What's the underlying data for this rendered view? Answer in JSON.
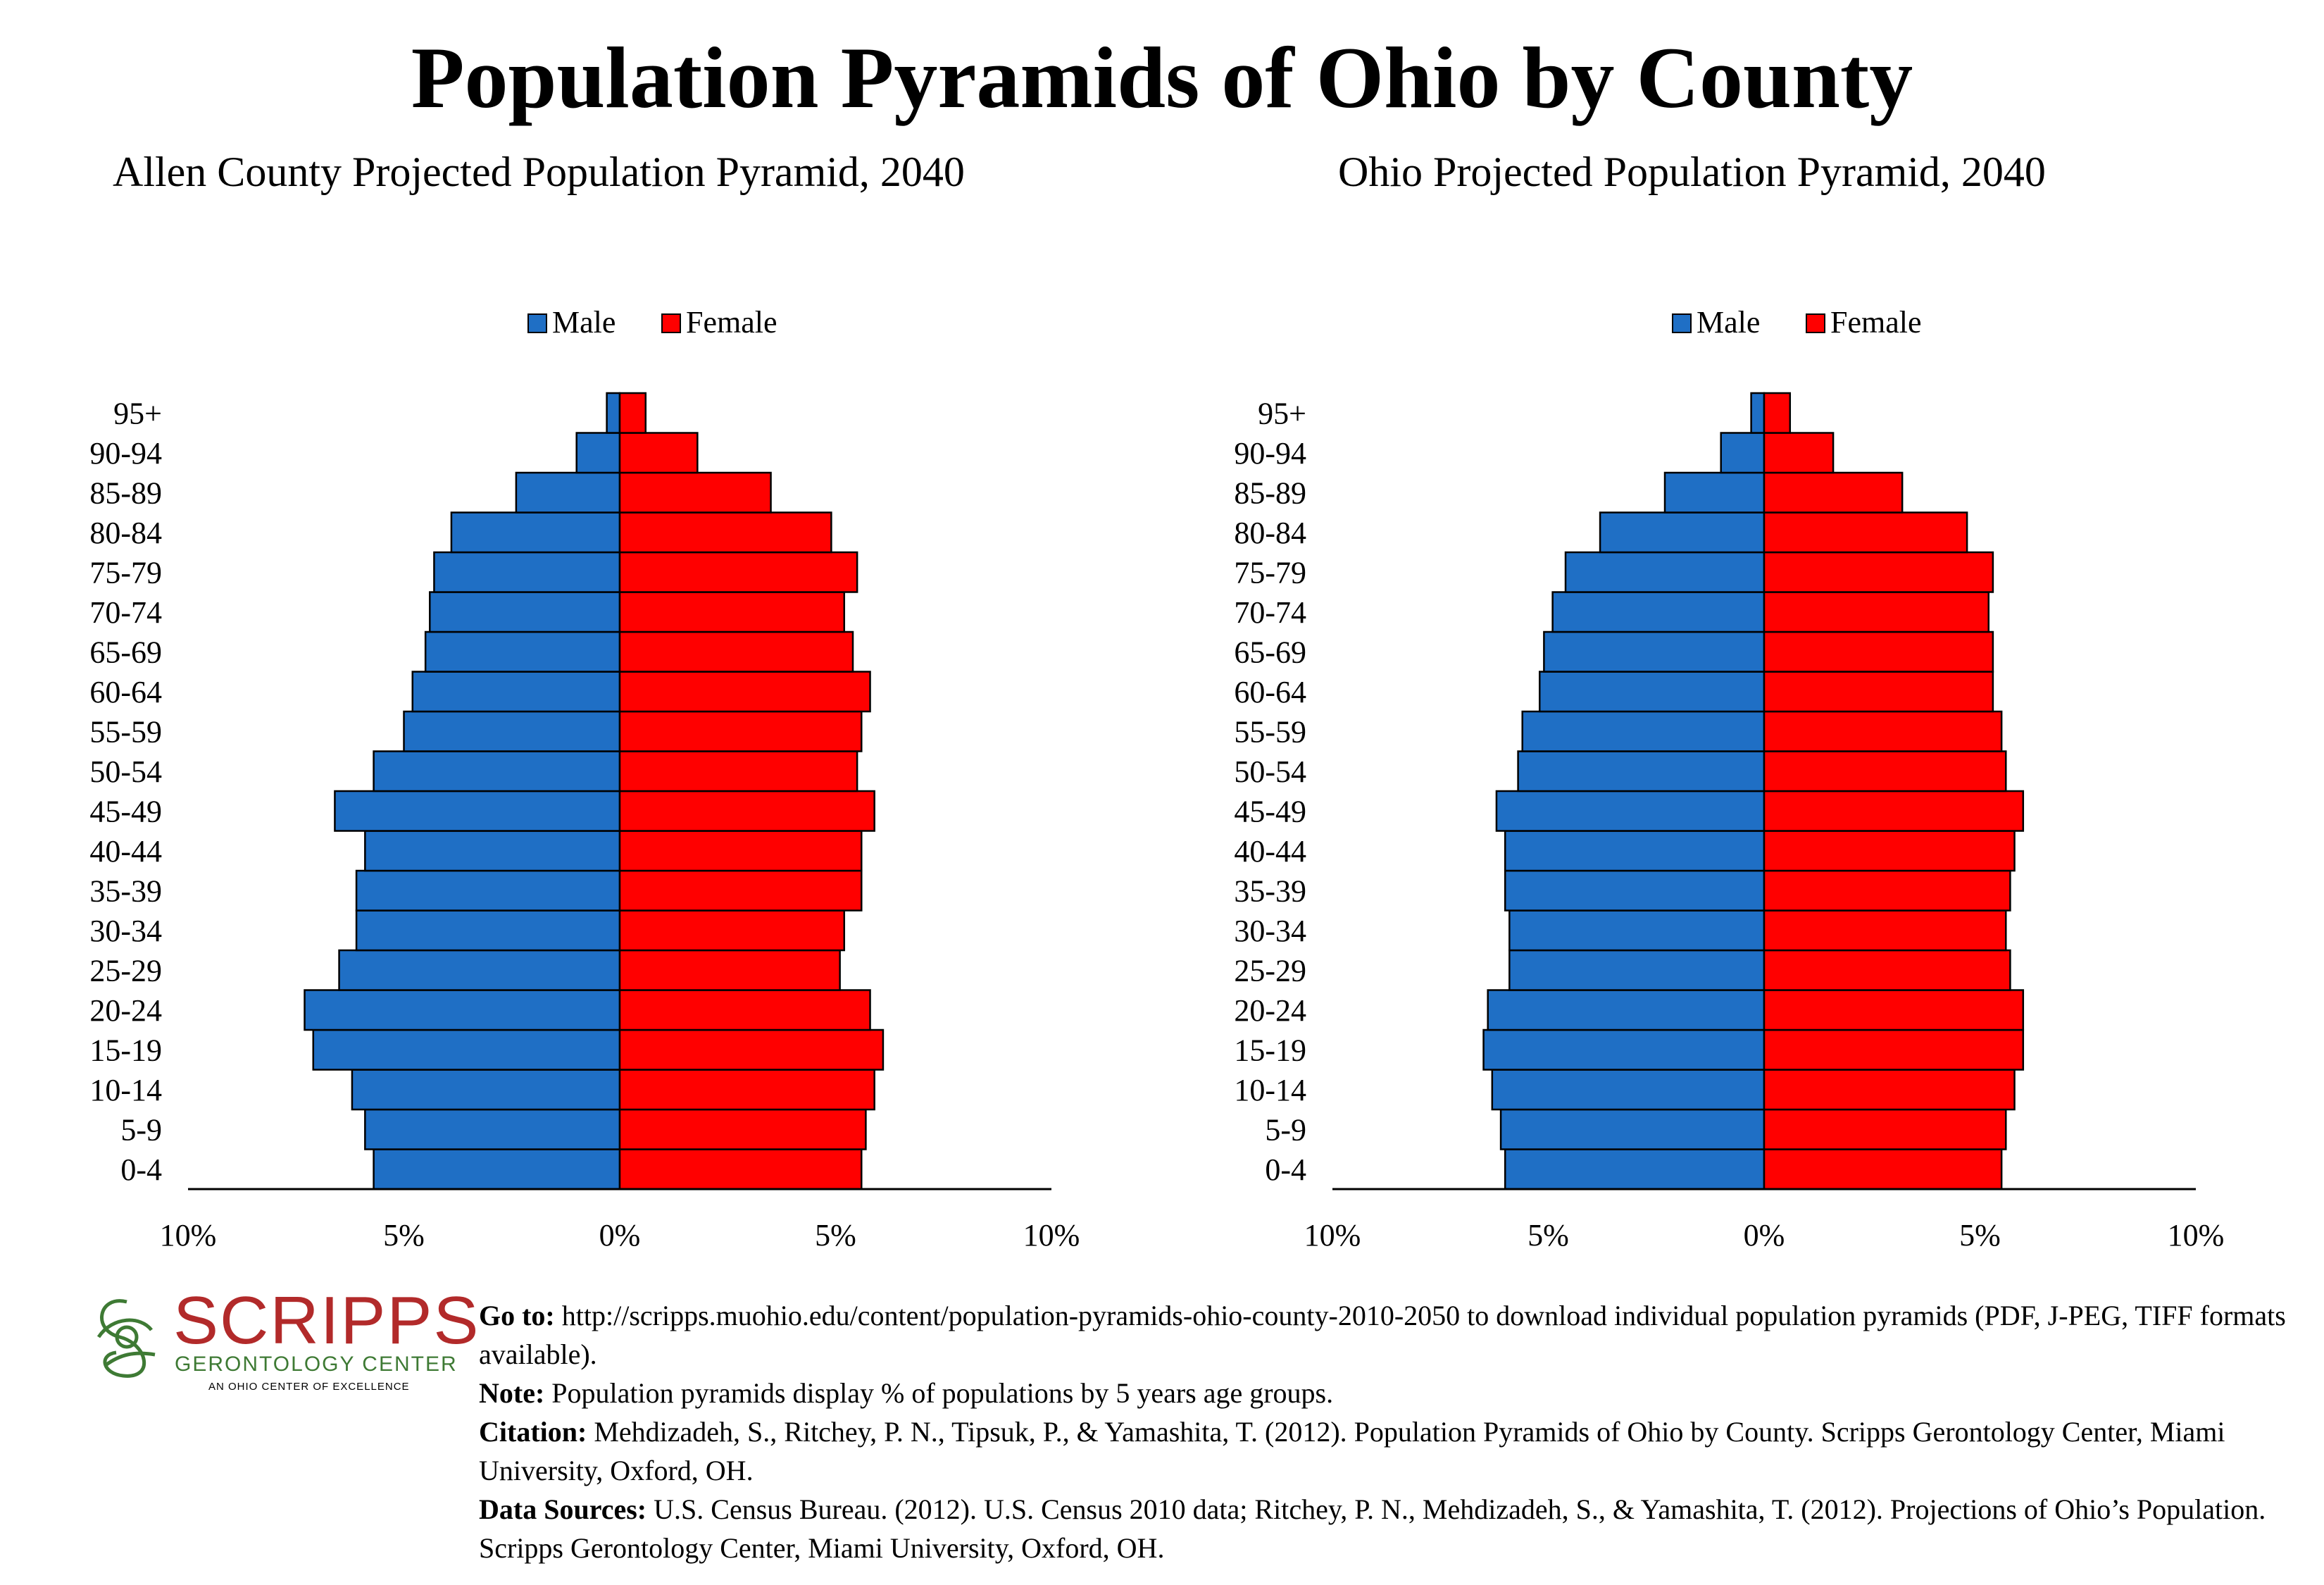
{
  "main_title": "Population Pyramids of Ohio by County",
  "colors": {
    "male": "#1f6fc5",
    "female": "#ff0000",
    "logo_red": "#b22a2a",
    "logo_green": "#3e7a34"
  },
  "chart_data": [
    {
      "type": "bar",
      "orientation": "horizontal-pyramid",
      "title": "Allen County Projected Population Pyramid, 2040",
      "legend": [
        "Male",
        "Female"
      ],
      "legend_position": "top-center",
      "categories": [
        "0-4",
        "5-9",
        "10-14",
        "15-19",
        "20-24",
        "25-29",
        "30-34",
        "35-39",
        "40-44",
        "45-49",
        "50-54",
        "55-59",
        "60-64",
        "65-69",
        "70-74",
        "75-79",
        "80-84",
        "85-89",
        "90-94",
        "95+"
      ],
      "series": [
        {
          "name": "Male",
          "values": [
            5.7,
            5.9,
            6.2,
            7.1,
            7.3,
            6.5,
            6.1,
            6.1,
            5.9,
            6.6,
            5.7,
            5.0,
            4.8,
            4.5,
            4.4,
            4.3,
            3.9,
            2.4,
            1.0,
            0.3
          ]
        },
        {
          "name": "Female",
          "values": [
            5.6,
            5.7,
            5.9,
            6.1,
            5.8,
            5.1,
            5.2,
            5.6,
            5.6,
            5.9,
            5.5,
            5.6,
            5.8,
            5.4,
            5.2,
            5.5,
            4.9,
            3.5,
            1.8,
            0.6
          ]
        }
      ],
      "xlim": [
        -10,
        10
      ],
      "x_tick_labels": [
        "10%",
        "5%",
        "0%",
        "5%",
        "10%"
      ],
      "grid": false
    },
    {
      "type": "bar",
      "orientation": "horizontal-pyramid",
      "title": "Ohio Projected Population Pyramid, 2040",
      "legend": [
        "Male",
        "Female"
      ],
      "legend_position": "top-center",
      "categories": [
        "0-4",
        "5-9",
        "10-14",
        "15-19",
        "20-24",
        "25-29",
        "30-34",
        "35-39",
        "40-44",
        "45-49",
        "50-54",
        "55-59",
        "60-64",
        "65-69",
        "70-74",
        "75-79",
        "80-84",
        "85-89",
        "90-94",
        "95+"
      ],
      "series": [
        {
          "name": "Male",
          "values": [
            6.0,
            6.1,
            6.3,
            6.5,
            6.4,
            5.9,
            5.9,
            6.0,
            6.0,
            6.2,
            5.7,
            5.6,
            5.2,
            5.1,
            4.9,
            4.6,
            3.8,
            2.3,
            1.0,
            0.3
          ]
        },
        {
          "name": "Female",
          "values": [
            5.5,
            5.6,
            5.8,
            6.0,
            6.0,
            5.7,
            5.6,
            5.7,
            5.8,
            6.0,
            5.6,
            5.5,
            5.3,
            5.3,
            5.2,
            5.3,
            4.7,
            3.2,
            1.6,
            0.6
          ]
        }
      ],
      "xlim": [
        -10,
        10
      ],
      "x_tick_labels": [
        "10%",
        "5%",
        "0%",
        "5%",
        "10%"
      ],
      "grid": false
    }
  ],
  "footer": {
    "goto_label": "Go to:",
    "goto_text": " http://scripps.muohio.edu/content/population-pyramids-ohio-county-2010-2050 to download individual population pyramids (PDF, J-PEG, TIFF formats available).",
    "note_label": "Note:",
    "note_text": " Population pyramids display % of populations by 5 years age groups.",
    "citation_label": "Citation:",
    "citation_text": " Mehdizadeh, S., Ritchey, P. N., Tipsuk, P., & Yamashita, T. (2012). Population Pyramids of Ohio by County. Scripps Gerontology Center, Miami University, Oxford, OH.",
    "sources_label": "Data Sources:",
    "sources_text": " U.S. Census Bureau. (2012). U.S. Census 2010 data; Ritchey, P. N., Mehdizadeh, S., & Yamashita, T. (2012). Projections of Ohio’s Population. Scripps Gerontology Center, Miami University, Oxford, OH."
  },
  "logo": {
    "word": "SCRIPPS",
    "subtitle": "GERONTOLOGY CENTER",
    "tagline": "AN OHIO CENTER OF EXCELLENCE"
  }
}
